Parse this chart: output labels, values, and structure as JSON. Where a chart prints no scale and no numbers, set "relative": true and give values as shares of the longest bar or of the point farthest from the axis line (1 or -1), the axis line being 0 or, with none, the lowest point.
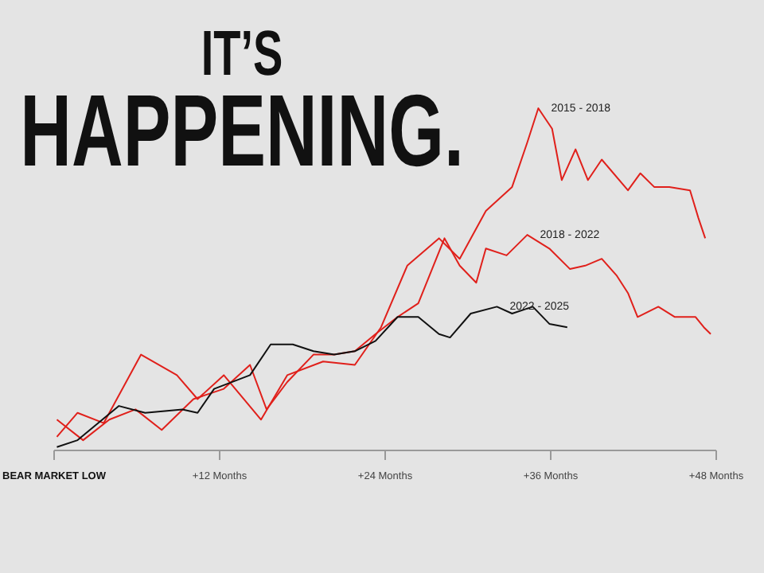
{
  "chart_data": {
    "type": "line",
    "title": "IT’S HAPPENING.",
    "relative": true,
    "xlim": [
      0,
      48
    ],
    "xticks": [
      {
        "value": 0,
        "label": "BEAR MARKET LOW"
      },
      {
        "value": 12,
        "label": "+12 Months"
      },
      {
        "value": 24,
        "label": "+24 Months"
      },
      {
        "value": 36,
        "label": "+36 Months"
      },
      {
        "value": 48,
        "label": "+48 Months"
      }
    ],
    "series": [
      {
        "name": "2015 - 2018",
        "color": "#e0201b",
        "x": [
          0.2,
          1.7,
          3.6,
          6.3,
          8.9,
          10.4,
          12.3,
          15.0,
          16.9,
          19.5,
          21.8,
          23.7,
          25.6,
          27.9,
          29.4,
          31.3,
          33.2,
          34.3,
          35.1,
          36.1,
          36.8,
          37.8,
          38.7,
          39.7,
          41.6,
          42.5,
          43.5,
          44.6,
          46.1,
          46.7,
          47.2
        ],
        "values": [
          0.04,
          0.11,
          0.08,
          0.28,
          0.22,
          0.15,
          0.22,
          0.09,
          0.22,
          0.26,
          0.25,
          0.36,
          0.54,
          0.62,
          0.56,
          0.7,
          0.77,
          0.9,
          1.0,
          0.94,
          0.79,
          0.88,
          0.79,
          0.85,
          0.76,
          0.81,
          0.77,
          0.77,
          0.76,
          0.68,
          0.62
        ]
      },
      {
        "name": "2018 - 2022",
        "color": "#e0201b",
        "x": [
          0.2,
          2.1,
          4.0,
          5.9,
          7.8,
          10.1,
          12.3,
          14.2,
          15.4,
          16.9,
          18.8,
          20.3,
          21.8,
          23.3,
          24.9,
          26.4,
          28.3,
          29.4,
          30.6,
          31.3,
          32.8,
          34.3,
          35.9,
          37.4,
          38.5,
          39.7,
          40.8,
          41.6,
          42.3,
          43.8,
          45.0,
          46.5,
          47.1,
          47.6
        ],
        "values": [
          0.09,
          0.03,
          0.09,
          0.12,
          0.06,
          0.15,
          0.18,
          0.25,
          0.12,
          0.2,
          0.28,
          0.28,
          0.29,
          0.34,
          0.39,
          0.43,
          0.62,
          0.54,
          0.49,
          0.59,
          0.57,
          0.63,
          0.59,
          0.53,
          0.54,
          0.56,
          0.51,
          0.46,
          0.39,
          0.42,
          0.39,
          0.39,
          0.36,
          0.34
        ]
      },
      {
        "name": "2022 - 2025",
        "color": "#111111",
        "x": [
          0.2,
          1.7,
          3.2,
          4.7,
          6.6,
          9.3,
          10.4,
          11.6,
          14.2,
          15.7,
          17.3,
          18.8,
          20.3,
          21.8,
          23.3,
          24.9,
          26.4,
          27.9,
          28.7,
          30.2,
          32.1,
          33.2,
          34.7,
          35.9,
          37.2
        ],
        "values": [
          0.01,
          0.03,
          0.08,
          0.13,
          0.11,
          0.12,
          0.11,
          0.18,
          0.22,
          0.31,
          0.31,
          0.29,
          0.28,
          0.29,
          0.32,
          0.39,
          0.39,
          0.34,
          0.33,
          0.4,
          0.42,
          0.4,
          0.42,
          0.37,
          0.36
        ]
      }
    ]
  }
}
